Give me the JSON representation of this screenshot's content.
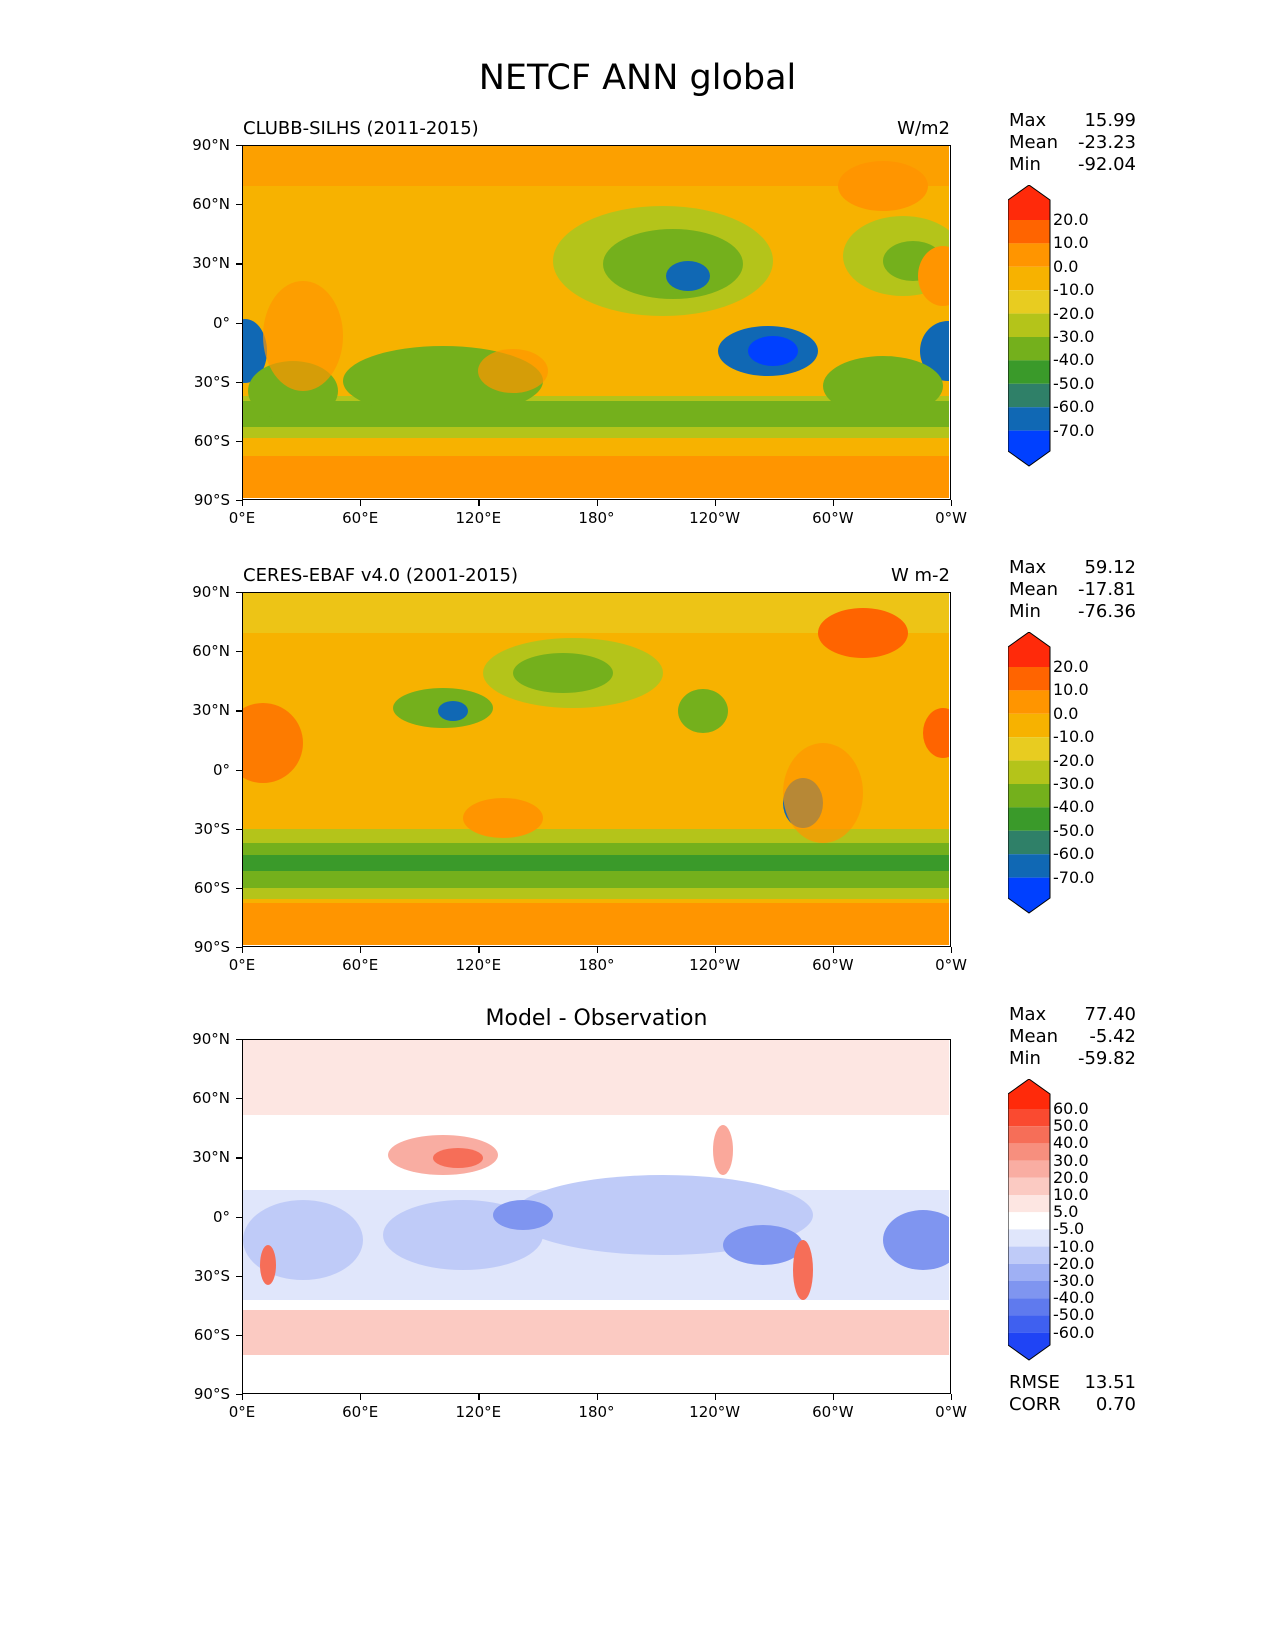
{
  "figure_title": "NETCF ANN global",
  "lat_labels": [
    "90°N",
    "60°N",
    "30°N",
    "0°",
    "30°S",
    "60°S",
    "90°S"
  ],
  "lon_labels": [
    "0°E",
    "60°E",
    "120°E",
    "180°",
    "120°W",
    "60°W",
    "0°W"
  ],
  "panels": [
    {
      "left_title": "CLUBB-SILHS (2011-2015)",
      "right_title": "W/m2",
      "stats": {
        "max_label": "Max",
        "max": "15.99",
        "mean_label": "Mean",
        "mean": "-23.23",
        "min_label": "Min",
        "min": "-92.04"
      },
      "colorbar": {
        "levels": [
          "20.0",
          "10.0",
          "0.0",
          "-10.0",
          "-20.0",
          "-30.0",
          "-40.0",
          "-50.0",
          "-60.0",
          "-70.0"
        ],
        "colors": [
          "#ff2a0a",
          "#ff6400",
          "#ff9500",
          "#f7b200",
          "#e8cc20",
          "#b4c41a",
          "#74b01c",
          "#3a9a2a",
          "#2f8068",
          "#1068b4",
          "#0040ff",
          "#0020ff"
        ]
      }
    },
    {
      "left_title": "CERES-EBAF v4.0 (2001-2015)",
      "right_title": "W m-2",
      "stats": {
        "max_label": "Max",
        "max": "59.12",
        "mean_label": "Mean",
        "mean": "-17.81",
        "min_label": "Min",
        "min": "-76.36"
      },
      "colorbar": {
        "levels": [
          "20.0",
          "10.0",
          "0.0",
          "-10.0",
          "-20.0",
          "-30.0",
          "-40.0",
          "-50.0",
          "-60.0",
          "-70.0"
        ],
        "colors": [
          "#ff2a0a",
          "#ff6400",
          "#ff9500",
          "#f7b200",
          "#e8cc20",
          "#b4c41a",
          "#74b01c",
          "#3a9a2a",
          "#2f8068",
          "#1068b4",
          "#0040ff",
          "#0020ff"
        ]
      }
    },
    {
      "center_title": "Model - Observation",
      "stats": {
        "max_label": "Max",
        "max": "77.40",
        "mean_label": "Mean",
        "mean": "-5.42",
        "min_label": "Min",
        "min": "-59.82"
      },
      "extra_stats": {
        "rmse_label": "RMSE",
        "rmse": "13.51",
        "corr_label": "CORR",
        "corr": "0.70"
      },
      "colorbar": {
        "levels": [
          "60.0",
          "50.0",
          "40.0",
          "30.0",
          "20.0",
          "10.0",
          "5.0",
          "-5.0",
          "-10.0",
          "-20.0",
          "-30.0",
          "-40.0",
          "-50.0",
          "-60.0"
        ],
        "colors": [
          "#ff2a0a",
          "#fa4a30",
          "#f66e58",
          "#f78f7e",
          "#f9ada2",
          "#fbcac2",
          "#fde6e2",
          "#ffffff",
          "#e0e6fb",
          "#bfcbf8",
          "#9fb0f4",
          "#7f95f0",
          "#5f7aee",
          "#3f60f0",
          "#1f44f5",
          "#0a28ff"
        ]
      }
    }
  ]
}
